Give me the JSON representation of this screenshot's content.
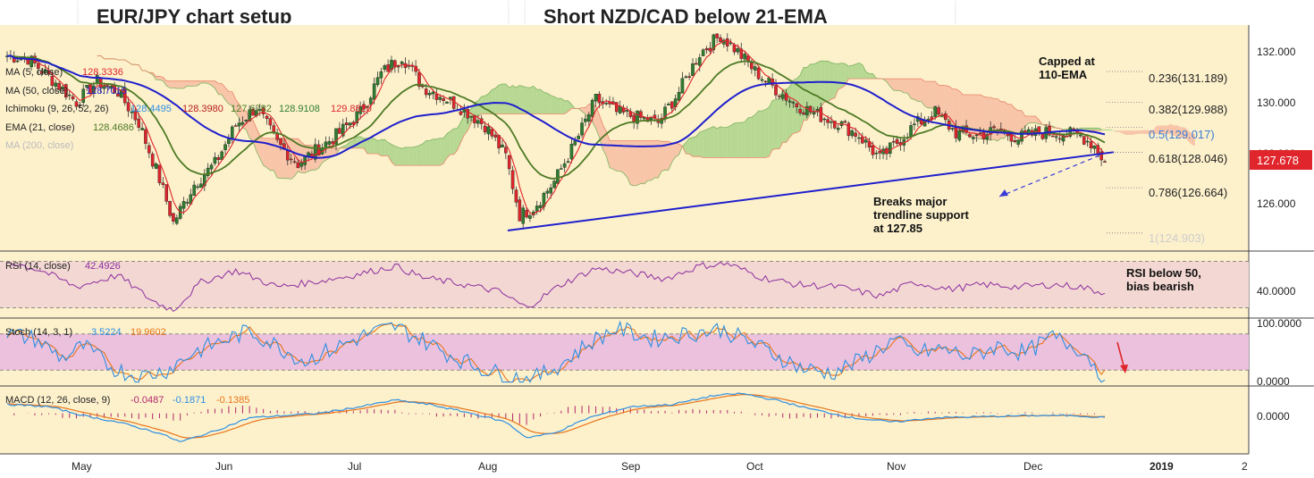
{
  "tabs": [
    {
      "title": "EUR/JPY chart setup"
    },
    {
      "title": "Short NZD/CAD below 21-EMA"
    }
  ],
  "colors": {
    "background": "#fdf1cc",
    "bull_candle": "#2f7d2f",
    "bear_candle": "#e0262c",
    "ma5": "#e0262c",
    "ma50": "#1f1fcc",
    "ema21": "#4d7a24",
    "kumo_bull": "#9fcf80",
    "kumo_bear": "#f6b59e",
    "rsi_line": "#8c2fa0",
    "rsi_band": "#f3d7d2",
    "stoch_k": "#2e8fe0",
    "stoch_d": "#e8741a",
    "stoch_band": "#ebc1dd",
    "macd_line": "#2e8fe0",
    "macd_signal": "#e8741a",
    "macd_hist": "#b0256a",
    "trendline": "#1f1fcc",
    "last_price_bg": "#e0262c"
  },
  "chart_data": {
    "type": "candlestick",
    "symbol": "EUR/JPY",
    "x_labels": [
      "May",
      "Jun",
      "Jul",
      "Aug",
      "Sep",
      "Oct",
      "Nov",
      "Dec",
      "2019",
      "2"
    ],
    "price_axis": {
      "ticks": [
        "132.000",
        "130.000",
        "128.000",
        "126.000"
      ],
      "range": [
        124.2,
        133.0
      ],
      "last_price": "127.678"
    },
    "legend": [
      {
        "label": "MA (5, close)",
        "values": [
          "128.3336"
        ],
        "color": "#e0262c"
      },
      {
        "label": "MA (50, close)",
        "values": [
          "128.7015"
        ],
        "color": "#1f1fcc"
      },
      {
        "label": "Ichimoku (9, 26, 52, 26)",
        "values": [
          "128.4495",
          "128.3980",
          "127.6782",
          "128.9108",
          "129.8820"
        ],
        "color": "#333333"
      },
      {
        "label": "EMA (21, close)",
        "values": [
          "128.4686"
        ],
        "color": "#4d7a24"
      },
      {
        "label": "MA (200, close)",
        "values": [],
        "color": "#bbbbbb"
      }
    ],
    "fibonacci": [
      {
        "label": "0.236(131.189)",
        "value": 131.189
      },
      {
        "label": "0.382(129.988)",
        "value": 129.988
      },
      {
        "label": "0.5(129.017)",
        "value": 129.017
      },
      {
        "label": "0.618(128.046)",
        "value": 128.046
      },
      {
        "label": "0.786(126.664)",
        "value": 126.664
      },
      {
        "label": "1(124.903)",
        "value": 124.903
      }
    ],
    "annotations": [
      {
        "id": "capped",
        "lines": [
          "Capped at",
          "110-EMA"
        ]
      },
      {
        "id": "breaks",
        "lines": [
          "Breaks major",
          "trendline support",
          "at 127.85"
        ]
      },
      {
        "id": "rsi_note",
        "lines": [
          "RSI below 50,",
          "bias bearish"
        ]
      }
    ],
    "trendline": {
      "from": {
        "date": "2018-08-10",
        "price": 125.0
      },
      "to": {
        "date": "2018-12-26",
        "price": 128.05
      }
    },
    "rsi": {
      "label": "RSI (14, close)",
      "value": "42.4926",
      "ticks": [
        "40.0000"
      ],
      "range": [
        22,
        78
      ],
      "band": [
        30,
        70
      ]
    },
    "stoch": {
      "label": "Stoch (14, 3, 1)",
      "k": "3.5224",
      "d": "19.9602",
      "ticks": [
        "100.0000",
        "0.0000"
      ],
      "range": [
        -5,
        105
      ],
      "band": [
        20,
        80
      ]
    },
    "macd": {
      "label": "MACD (12, 26, close, 9)",
      "hist": "-0.0487",
      "macd": "-0.1871",
      "signal": "-0.1385",
      "ticks": [
        "0.0000"
      ],
      "range": [
        -1.8,
        1.2
      ]
    },
    "close_anchors": [
      [
        0,
        131.8
      ],
      [
        6,
        131.7
      ],
      [
        12,
        131.0
      ],
      [
        20,
        130.0
      ],
      [
        26,
        130.8
      ],
      [
        32,
        130.4
      ],
      [
        38,
        129.2
      ],
      [
        44,
        127.0
      ],
      [
        48,
        125.3
      ],
      [
        54,
        126.8
      ],
      [
        60,
        127.6
      ],
      [
        66,
        129.1
      ],
      [
        72,
        129.8
      ],
      [
        78,
        128.4
      ],
      [
        84,
        127.6
      ],
      [
        90,
        128.2
      ],
      [
        96,
        128.8
      ],
      [
        102,
        129.6
      ],
      [
        108,
        131.1
      ],
      [
        114,
        131.8
      ],
      [
        120,
        130.6
      ],
      [
        126,
        130.2
      ],
      [
        132,
        129.7
      ],
      [
        138,
        129.1
      ],
      [
        144,
        127.9
      ],
      [
        148,
        125.6
      ],
      [
        152,
        125.9
      ],
      [
        158,
        126.9
      ],
      [
        164,
        128.4
      ],
      [
        170,
        130.1
      ],
      [
        176,
        129.6
      ],
      [
        182,
        129.4
      ],
      [
        188,
        129.2
      ],
      [
        194,
        130.4
      ],
      [
        200,
        131.9
      ],
      [
        206,
        132.6
      ],
      [
        210,
        132.1
      ],
      [
        216,
        131.2
      ],
      [
        222,
        130.5
      ],
      [
        228,
        129.9
      ],
      [
        234,
        129.5
      ],
      [
        240,
        129.2
      ],
      [
        246,
        128.7
      ],
      [
        252,
        127.8
      ],
      [
        256,
        128.3
      ],
      [
        262,
        129.1
      ],
      [
        268,
        129.6
      ],
      [
        274,
        128.8
      ],
      [
        280,
        128.7
      ],
      [
        286,
        128.9
      ],
      [
        292,
        128.6
      ],
      [
        298,
        128.8
      ],
      [
        304,
        128.8
      ],
      [
        310,
        128.7
      ],
      [
        314,
        128.3
      ],
      [
        317,
        127.68
      ]
    ],
    "rsi_anchors": [
      [
        0,
        70
      ],
      [
        10,
        62
      ],
      [
        20,
        48
      ],
      [
        32,
        58
      ],
      [
        42,
        36
      ],
      [
        48,
        28
      ],
      [
        56,
        52
      ],
      [
        66,
        62
      ],
      [
        78,
        48
      ],
      [
        88,
        52
      ],
      [
        100,
        58
      ],
      [
        112,
        66
      ],
      [
        120,
        56
      ],
      [
        132,
        50
      ],
      [
        142,
        44
      ],
      [
        150,
        30
      ],
      [
        160,
        50
      ],
      [
        170,
        64
      ],
      [
        180,
        60
      ],
      [
        190,
        55
      ],
      [
        200,
        66
      ],
      [
        208,
        68
      ],
      [
        218,
        56
      ],
      [
        228,
        50
      ],
      [
        240,
        48
      ],
      [
        252,
        40
      ],
      [
        262,
        52
      ],
      [
        272,
        46
      ],
      [
        282,
        50
      ],
      [
        292,
        48
      ],
      [
        302,
        50
      ],
      [
        310,
        48
      ],
      [
        317,
        42.5
      ]
    ],
    "stoch_anchors": [
      [
        0,
        80
      ],
      [
        8,
        72
      ],
      [
        16,
        40
      ],
      [
        22,
        60
      ],
      [
        30,
        25
      ],
      [
        38,
        8
      ],
      [
        46,
        20
      ],
      [
        54,
        50
      ],
      [
        62,
        68
      ],
      [
        70,
        85
      ],
      [
        78,
        60
      ],
      [
        86,
        35
      ],
      [
        94,
        55
      ],
      [
        104,
        80
      ],
      [
        112,
        92
      ],
      [
        120,
        70
      ],
      [
        128,
        45
      ],
      [
        136,
        25
      ],
      [
        144,
        10
      ],
      [
        152,
        5
      ],
      [
        160,
        30
      ],
      [
        168,
        65
      ],
      [
        176,
        90
      ],
      [
        186,
        72
      ],
      [
        196,
        80
      ],
      [
        206,
        88
      ],
      [
        214,
        68
      ],
      [
        222,
        45
      ],
      [
        230,
        22
      ],
      [
        238,
        15
      ],
      [
        246,
        35
      ],
      [
        256,
        70
      ],
      [
        262,
        48
      ],
      [
        270,
        55
      ],
      [
        278,
        42
      ],
      [
        286,
        60
      ],
      [
        294,
        48
      ],
      [
        302,
        75
      ],
      [
        310,
        55
      ],
      [
        314,
        30
      ],
      [
        317,
        3.5
      ]
    ],
    "macd_anchors": [
      [
        0,
        0.4
      ],
      [
        12,
        0.3
      ],
      [
        22,
        -0.1
      ],
      [
        32,
        -0.4
      ],
      [
        44,
        -0.9
      ],
      [
        50,
        -1.3
      ],
      [
        60,
        -0.8
      ],
      [
        70,
        -0.2
      ],
      [
        80,
        -0.1
      ],
      [
        90,
        0.0
      ],
      [
        102,
        0.3
      ],
      [
        112,
        0.6
      ],
      [
        122,
        0.4
      ],
      [
        134,
        0.0
      ],
      [
        144,
        -0.4
      ],
      [
        150,
        -1.1
      ],
      [
        158,
        -0.9
      ],
      [
        168,
        -0.2
      ],
      [
        180,
        0.3
      ],
      [
        192,
        0.4
      ],
      [
        204,
        0.8
      ],
      [
        212,
        0.9
      ],
      [
        222,
        0.6
      ],
      [
        232,
        0.2
      ],
      [
        244,
        -0.2
      ],
      [
        256,
        -0.4
      ],
      [
        268,
        -0.2
      ],
      [
        282,
        -0.15
      ],
      [
        296,
        -0.1
      ],
      [
        308,
        -0.1
      ],
      [
        317,
        -0.19
      ]
    ]
  }
}
